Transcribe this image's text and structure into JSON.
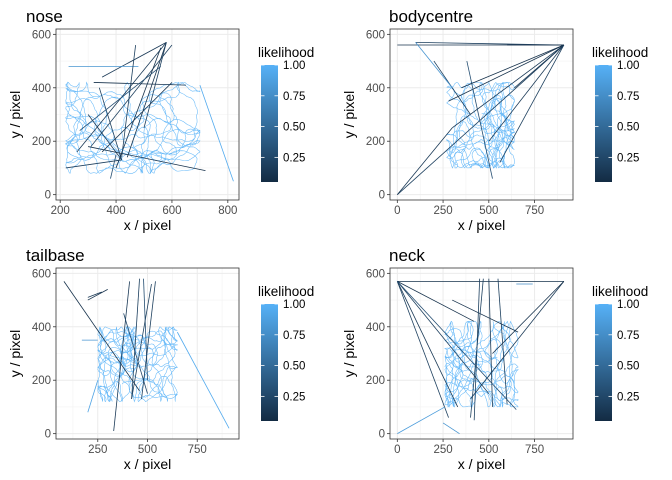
{
  "chart_data": [
    {
      "type": "line",
      "title": "nose",
      "xlabel": "x / pixel",
      "ylabel": "y / pixel",
      "xlim": [
        185,
        840
      ],
      "ylim": [
        -20,
        620
      ],
      "xticks": [
        200,
        400,
        600,
        800
      ],
      "yticks": [
        0,
        200,
        400,
        600
      ],
      "arena": {
        "x": [
          220,
          700
        ],
        "y": [
          80,
          420
        ]
      },
      "legend": {
        "title": "likelihood",
        "labels": [
          "1.00",
          "0.75",
          "0.50",
          "0.25"
        ],
        "values": [
          1.0,
          0.75,
          0.5,
          0.25
        ],
        "range": [
          0.05,
          1.0
        ],
        "position": "right"
      },
      "jumps": [
        [
          [
            350,
            440
          ],
          [
            580,
            570
          ],
          0.15
        ],
        [
          [
            580,
            570
          ],
          [
            440,
            140
          ],
          0.1
        ],
        [
          [
            310,
            180
          ],
          [
            600,
            560
          ],
          0.2
        ],
        [
          [
            400,
            100
          ],
          [
            560,
            550
          ],
          0.1
        ],
        [
          [
            260,
            160
          ],
          [
            580,
            570
          ],
          0.15
        ],
        [
          [
            500,
            250
          ],
          [
            580,
            570
          ],
          0.2
        ],
        [
          [
            320,
            420
          ],
          [
            650,
            410
          ],
          0.1
        ],
        [
          [
            340,
            400
          ],
          [
            420,
            130
          ],
          0.2
        ],
        [
          [
            300,
            300
          ],
          [
            420,
            130
          ],
          0.15
        ],
        [
          [
            300,
            180
          ],
          [
            720,
            90
          ],
          0.1
        ],
        [
          [
            220,
            100
          ],
          [
            420,
            130
          ],
          0.2
        ],
        [
          [
            380,
            60
          ],
          [
            400,
            150
          ],
          0.3
        ],
        [
          [
            700,
            410
          ],
          [
            820,
            50
          ],
          0.95
        ],
        [
          [
            230,
            480
          ],
          [
            480,
            480
          ],
          0.8
        ],
        [
          [
            270,
            240
          ],
          [
            560,
            480
          ],
          0.3
        ],
        [
          [
            420,
            140
          ],
          [
            470,
            560
          ],
          0.2
        ],
        [
          [
            600,
            420
          ],
          [
            350,
            160
          ],
          0.15
        ]
      ]
    },
    {
      "type": "line",
      "title": "bodycentre",
      "xlabel": "x / pixel",
      "ylabel": "y / pixel",
      "xlim": [
        -40,
        960
      ],
      "ylim": [
        -20,
        620
      ],
      "xticks": [
        0,
        250,
        500,
        750
      ],
      "yticks": [
        0,
        200,
        400,
        600
      ],
      "arena": {
        "x": [
          270,
          640
        ],
        "y": [
          100,
          420
        ]
      },
      "legend": {
        "title": "likelihood",
        "labels": [
          "1.00",
          "0.75",
          "0.50",
          "0.25"
        ],
        "values": [
          1.0,
          0.75,
          0.5,
          0.25
        ],
        "range": [
          0.05,
          1.0
        ],
        "position": "right"
      },
      "jumps": [
        [
          [
            0,
            560
          ],
          [
            910,
            560
          ],
          0.1
        ],
        [
          [
            100,
            570
          ],
          [
            900,
            560
          ],
          0.2
        ],
        [
          [
            910,
            560
          ],
          [
            300,
            250
          ],
          0.15
        ],
        [
          [
            910,
            560
          ],
          [
            280,
            350
          ],
          0.1
        ],
        [
          [
            910,
            560
          ],
          [
            0,
            0
          ],
          0.2
        ],
        [
          [
            910,
            560
          ],
          [
            500,
            200
          ],
          0.15
        ],
        [
          [
            910,
            560
          ],
          [
            600,
            560
          ],
          0.1
        ],
        [
          [
            380,
            500
          ],
          [
            520,
            60
          ],
          0.3
        ],
        [
          [
            200,
            500
          ],
          [
            400,
            300
          ],
          0.2
        ],
        [
          [
            910,
            560
          ],
          [
            350,
            400
          ],
          0.1
        ],
        [
          [
            300,
            250
          ],
          [
            0,
            0
          ],
          0.15
        ],
        [
          [
            100,
            570
          ],
          [
            300,
            400
          ],
          0.8
        ],
        [
          [
            910,
            560
          ],
          [
            560,
            120
          ],
          0.2
        ],
        [
          [
            910,
            560
          ],
          [
            640,
            400
          ],
          0.15
        ]
      ]
    },
    {
      "type": "line",
      "title": "tailbase",
      "xlabel": "x / pixel",
      "ylabel": "y / pixel",
      "xlim": [
        40,
        960
      ],
      "ylim": [
        -20,
        620
      ],
      "xticks": [
        250,
        500,
        750
      ],
      "yticks": [
        0,
        200,
        400,
        600
      ],
      "arena": {
        "x": [
          250,
          650
        ],
        "y": [
          120,
          400
        ]
      },
      "legend": {
        "title": "likelihood",
        "labels": [
          "1.00",
          "0.75",
          "0.50",
          "0.25"
        ],
        "values": [
          1.0,
          0.75,
          0.5,
          0.25
        ],
        "range": [
          0.05,
          1.0
        ],
        "position": "right"
      },
      "jumps": [
        [
          [
            80,
            570
          ],
          [
            460,
            160
          ],
          0.1
        ],
        [
          [
            460,
            580
          ],
          [
            420,
            130
          ],
          0.2
        ],
        [
          [
            410,
            570
          ],
          [
            330,
            10
          ],
          0.15
        ],
        [
          [
            480,
            580
          ],
          [
            500,
            200
          ],
          0.3
        ],
        [
          [
            520,
            560
          ],
          [
            420,
            130
          ],
          0.2
        ],
        [
          [
            200,
            500
          ],
          [
            300,
            540
          ],
          0.1
        ],
        [
          [
            650,
            380
          ],
          [
            910,
            20
          ],
          0.95
        ],
        [
          [
            170,
            350
          ],
          [
            250,
            350
          ],
          0.8
        ],
        [
          [
            250,
            200
          ],
          [
            200,
            80
          ],
          0.9
        ],
        [
          [
            380,
            450
          ],
          [
            500,
            150
          ],
          0.25
        ],
        [
          [
            200,
            510
          ],
          [
            270,
            530
          ],
          0.15
        ],
        [
          [
            540,
            570
          ],
          [
            470,
            130
          ],
          0.2
        ]
      ]
    },
    {
      "type": "line",
      "title": "neck",
      "xlabel": "x / pixel",
      "ylabel": "y / pixel",
      "xlim": [
        -40,
        960
      ],
      "ylim": [
        -20,
        620
      ],
      "xticks": [
        0,
        250,
        500,
        750
      ],
      "yticks": [
        0,
        200,
        400,
        600
      ],
      "arena": {
        "x": [
          260,
          660
        ],
        "y": [
          100,
          420
        ]
      },
      "legend": {
        "title": "likelihood",
        "labels": [
          "1.00",
          "0.75",
          "0.50",
          "0.25"
        ],
        "values": [
          1.0,
          0.75,
          0.5,
          0.25
        ],
        "range": [
          0.05,
          1.0
        ],
        "position": "right"
      },
      "jumps": [
        [
          [
            0,
            570
          ],
          [
            910,
            570
          ],
          0.1
        ],
        [
          [
            0,
            570
          ],
          [
            330,
            100
          ],
          0.15
        ],
        [
          [
            0,
            570
          ],
          [
            280,
            60
          ],
          0.2
        ],
        [
          [
            0,
            570
          ],
          [
            420,
            420
          ],
          0.1
        ],
        [
          [
            0,
            570
          ],
          [
            500,
            150
          ],
          0.2
        ],
        [
          [
            910,
            570
          ],
          [
            400,
            130
          ],
          0.15
        ],
        [
          [
            910,
            570
          ],
          [
            520,
            300
          ],
          0.1
        ],
        [
          [
            450,
            580
          ],
          [
            420,
            50
          ],
          0.2
        ],
        [
          [
            500,
            580
          ],
          [
            520,
            100
          ],
          0.15
        ],
        [
          [
            550,
            580
          ],
          [
            600,
            110
          ],
          0.2
        ],
        [
          [
            300,
            500
          ],
          [
            660,
            380
          ],
          0.1
        ],
        [
          [
            0,
            0
          ],
          [
            260,
            100
          ],
          0.85
        ],
        [
          [
            250,
            40
          ],
          [
            340,
            0
          ],
          0.8
        ],
        [
          [
            650,
            560
          ],
          [
            740,
            560
          ],
          0.75
        ],
        [
          [
            0,
            570
          ],
          [
            650,
            90
          ],
          0.3
        ],
        [
          [
            400,
            60
          ],
          [
            470,
            580
          ],
          0.2
        ]
      ]
    }
  ]
}
